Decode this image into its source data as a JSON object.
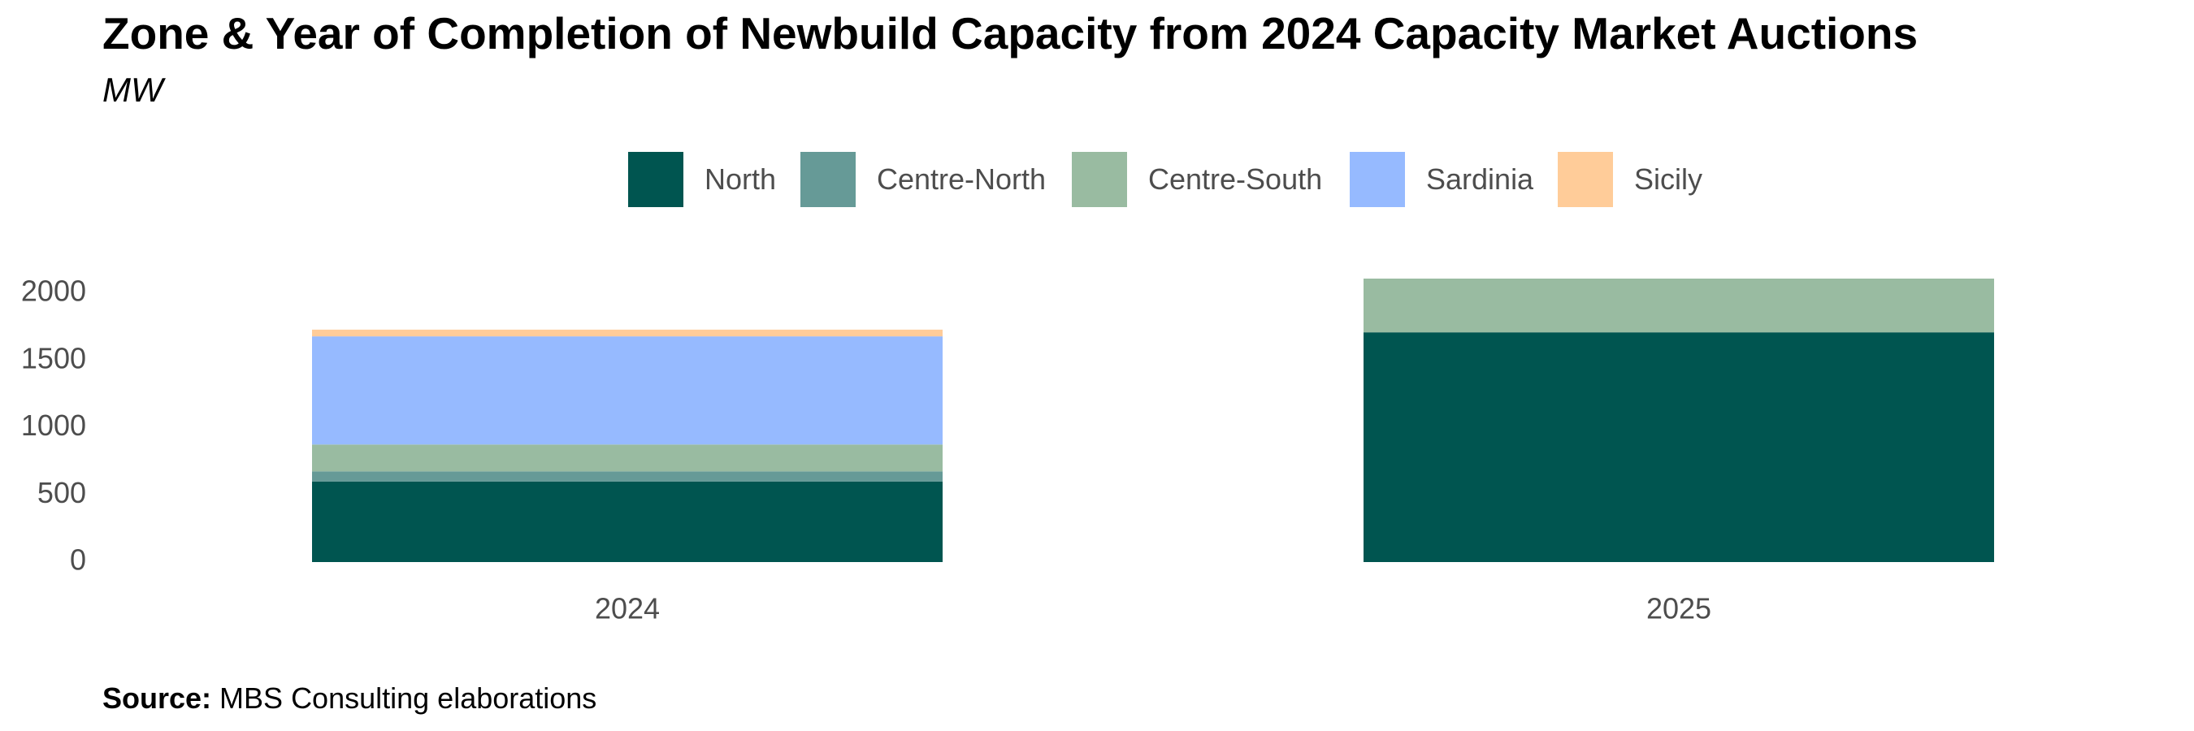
{
  "header": {
    "title": "Zone & Year of Completion of Newbuild Capacity from 2024 Capacity Market Auctions",
    "subtitle": "MW"
  },
  "footer": {
    "source_label": "Source:",
    "source_text": " MBS Consulting elaborations"
  },
  "colors": {
    "North": "#005550",
    "Centre-North": "#669a97",
    "Centre-South": "#99bba1",
    "Sardinia": "#96baff",
    "Sicily": "#ffcc99"
  },
  "chart_data": {
    "type": "bar",
    "stacked": true,
    "title": "Zone & Year of Completion of Newbuild Capacity from 2024 Capacity Market Auctions",
    "subtitle": "MW",
    "xlabel": "",
    "ylabel": "",
    "categories": [
      "2024",
      "2025"
    ],
    "yticks": [
      0,
      500,
      1000,
      1500,
      2000
    ],
    "ylim": [
      0,
      2100
    ],
    "grid": false,
    "legend_position": "top",
    "series": [
      {
        "name": "North",
        "values": [
          600,
          1710
        ]
      },
      {
        "name": "Centre-North",
        "values": [
          75,
          0
        ]
      },
      {
        "name": "Centre-South",
        "values": [
          200,
          400
        ]
      },
      {
        "name": "Sardinia",
        "values": [
          805,
          0
        ]
      },
      {
        "name": "Sicily",
        "values": [
          50,
          0
        ]
      }
    ]
  }
}
